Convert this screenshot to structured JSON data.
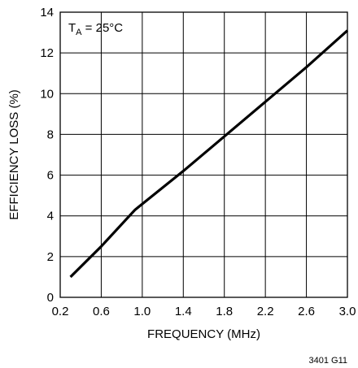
{
  "chart_data": {
    "type": "line",
    "title": "",
    "xlabel": "FREQUENCY (MHz)",
    "ylabel": "EFFICIENCY LOSS (%)",
    "xlim": [
      0.2,
      3.0
    ],
    "ylim": [
      0,
      14
    ],
    "x_ticks": [
      0.2,
      0.6,
      1.0,
      1.4,
      1.8,
      2.2,
      2.6,
      3.0
    ],
    "x_tick_labels": [
      "0.2",
      "0.6",
      "1.0",
      "1.4",
      "1.8",
      "2.2",
      "2.6",
      "3.0"
    ],
    "y_ticks": [
      0,
      2,
      4,
      6,
      8,
      10,
      12,
      14
    ],
    "y_tick_labels": [
      "0",
      "2",
      "4",
      "6",
      "8",
      "10",
      "12",
      "14"
    ],
    "grid": true,
    "annotation": {
      "prefix": "T",
      "subscript": "A",
      "suffix": " = 25°C",
      "position": "top-left"
    },
    "series": [
      {
        "x": [
          0.3,
          0.6,
          0.93,
          1.4,
          1.8,
          2.2,
          2.6,
          3.0
        ],
        "y": [
          1.0,
          2.5,
          4.3,
          6.2,
          7.9,
          9.6,
          11.3,
          13.1
        ]
      }
    ],
    "figure_id": "3401 G11"
  }
}
